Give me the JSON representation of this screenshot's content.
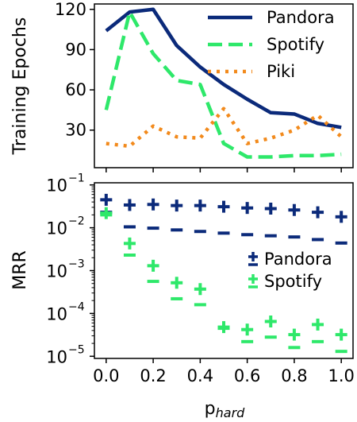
{
  "colors": {
    "pandora": "#0b2a7a",
    "spotify": "#2ee86a",
    "piki": "#f28a1c"
  },
  "xlabel_base": "p",
  "xlabel_sub": "hard",
  "x_ticks": [
    "0.0",
    "0.2",
    "0.4",
    "0.6",
    "0.8",
    "1.0"
  ],
  "chart_data": [
    {
      "type": "line",
      "ylabel": "Training Epochs",
      "ylim": [
        2,
        124
      ],
      "xlim": [
        -0.05,
        1.05
      ],
      "y_ticks": [
        "30",
        "60",
        "90",
        "120"
      ],
      "y_tick_values": [
        30,
        60,
        90,
        120
      ],
      "legend_position": "top-right",
      "x": [
        0.0,
        0.1,
        0.2,
        0.3,
        0.4,
        0.5,
        0.6,
        0.7,
        0.8,
        0.9,
        1.0
      ],
      "series": [
        {
          "name": "Pandora",
          "style": "solid",
          "values": [
            104,
            118,
            120,
            93,
            77,
            64,
            53,
            43,
            42,
            35,
            32
          ]
        },
        {
          "name": "Spotify",
          "style": "dashed",
          "values": [
            45,
            118,
            87,
            67,
            64,
            20,
            10,
            10,
            11,
            11,
            12
          ]
        },
        {
          "name": "Piki",
          "style": "dotted",
          "values": [
            20,
            18,
            33,
            25,
            24,
            46,
            20,
            24,
            30,
            41,
            25
          ]
        }
      ]
    },
    {
      "type": "scatter",
      "ylabel": "MRR",
      "yscale": "log",
      "ylim_exp": [
        -5.05,
        -0.95
      ],
      "xlim": [
        -0.05,
        1.05
      ],
      "y_tick_base": "10",
      "y_tick_exponents": [
        "−1",
        "−2",
        "−3",
        "−4",
        "−5"
      ],
      "y_tick_values": [
        -1,
        -2,
        -3,
        -4,
        -5
      ],
      "legend_position": "center-right",
      "x": [
        0.0,
        0.1,
        0.2,
        0.3,
        0.4,
        0.5,
        0.6,
        0.7,
        0.8,
        0.9,
        1.0
      ],
      "series": [
        {
          "name": "Pandora",
          "marker_high": "+",
          "marker_low": "−",
          "high": [
            0.045,
            0.034,
            0.035,
            0.033,
            0.033,
            0.031,
            0.029,
            0.028,
            0.026,
            0.023,
            0.018
          ],
          "low": [
            0.023,
            0.0105,
            0.0098,
            0.0089,
            0.0082,
            0.0075,
            0.0069,
            0.0065,
            0.0061,
            0.0053,
            0.0044
          ]
        },
        {
          "name": "Spotify",
          "marker_high": "+",
          "marker_low": "−",
          "high": [
            0.022,
            0.0043,
            0.0013,
            0.00052,
            0.00037,
            4.8e-05,
            4.2e-05,
            6.5e-05,
            3.2e-05,
            5.5e-05,
            3.2e-05
          ],
          "low": [
            0.02,
            0.0023,
            0.00056,
            0.00022,
            0.00016,
            4.5e-05,
            2.2e-05,
            2.8e-05,
            1.6e-05,
            2.2e-05,
            1.3e-05
          ]
        }
      ]
    }
  ]
}
